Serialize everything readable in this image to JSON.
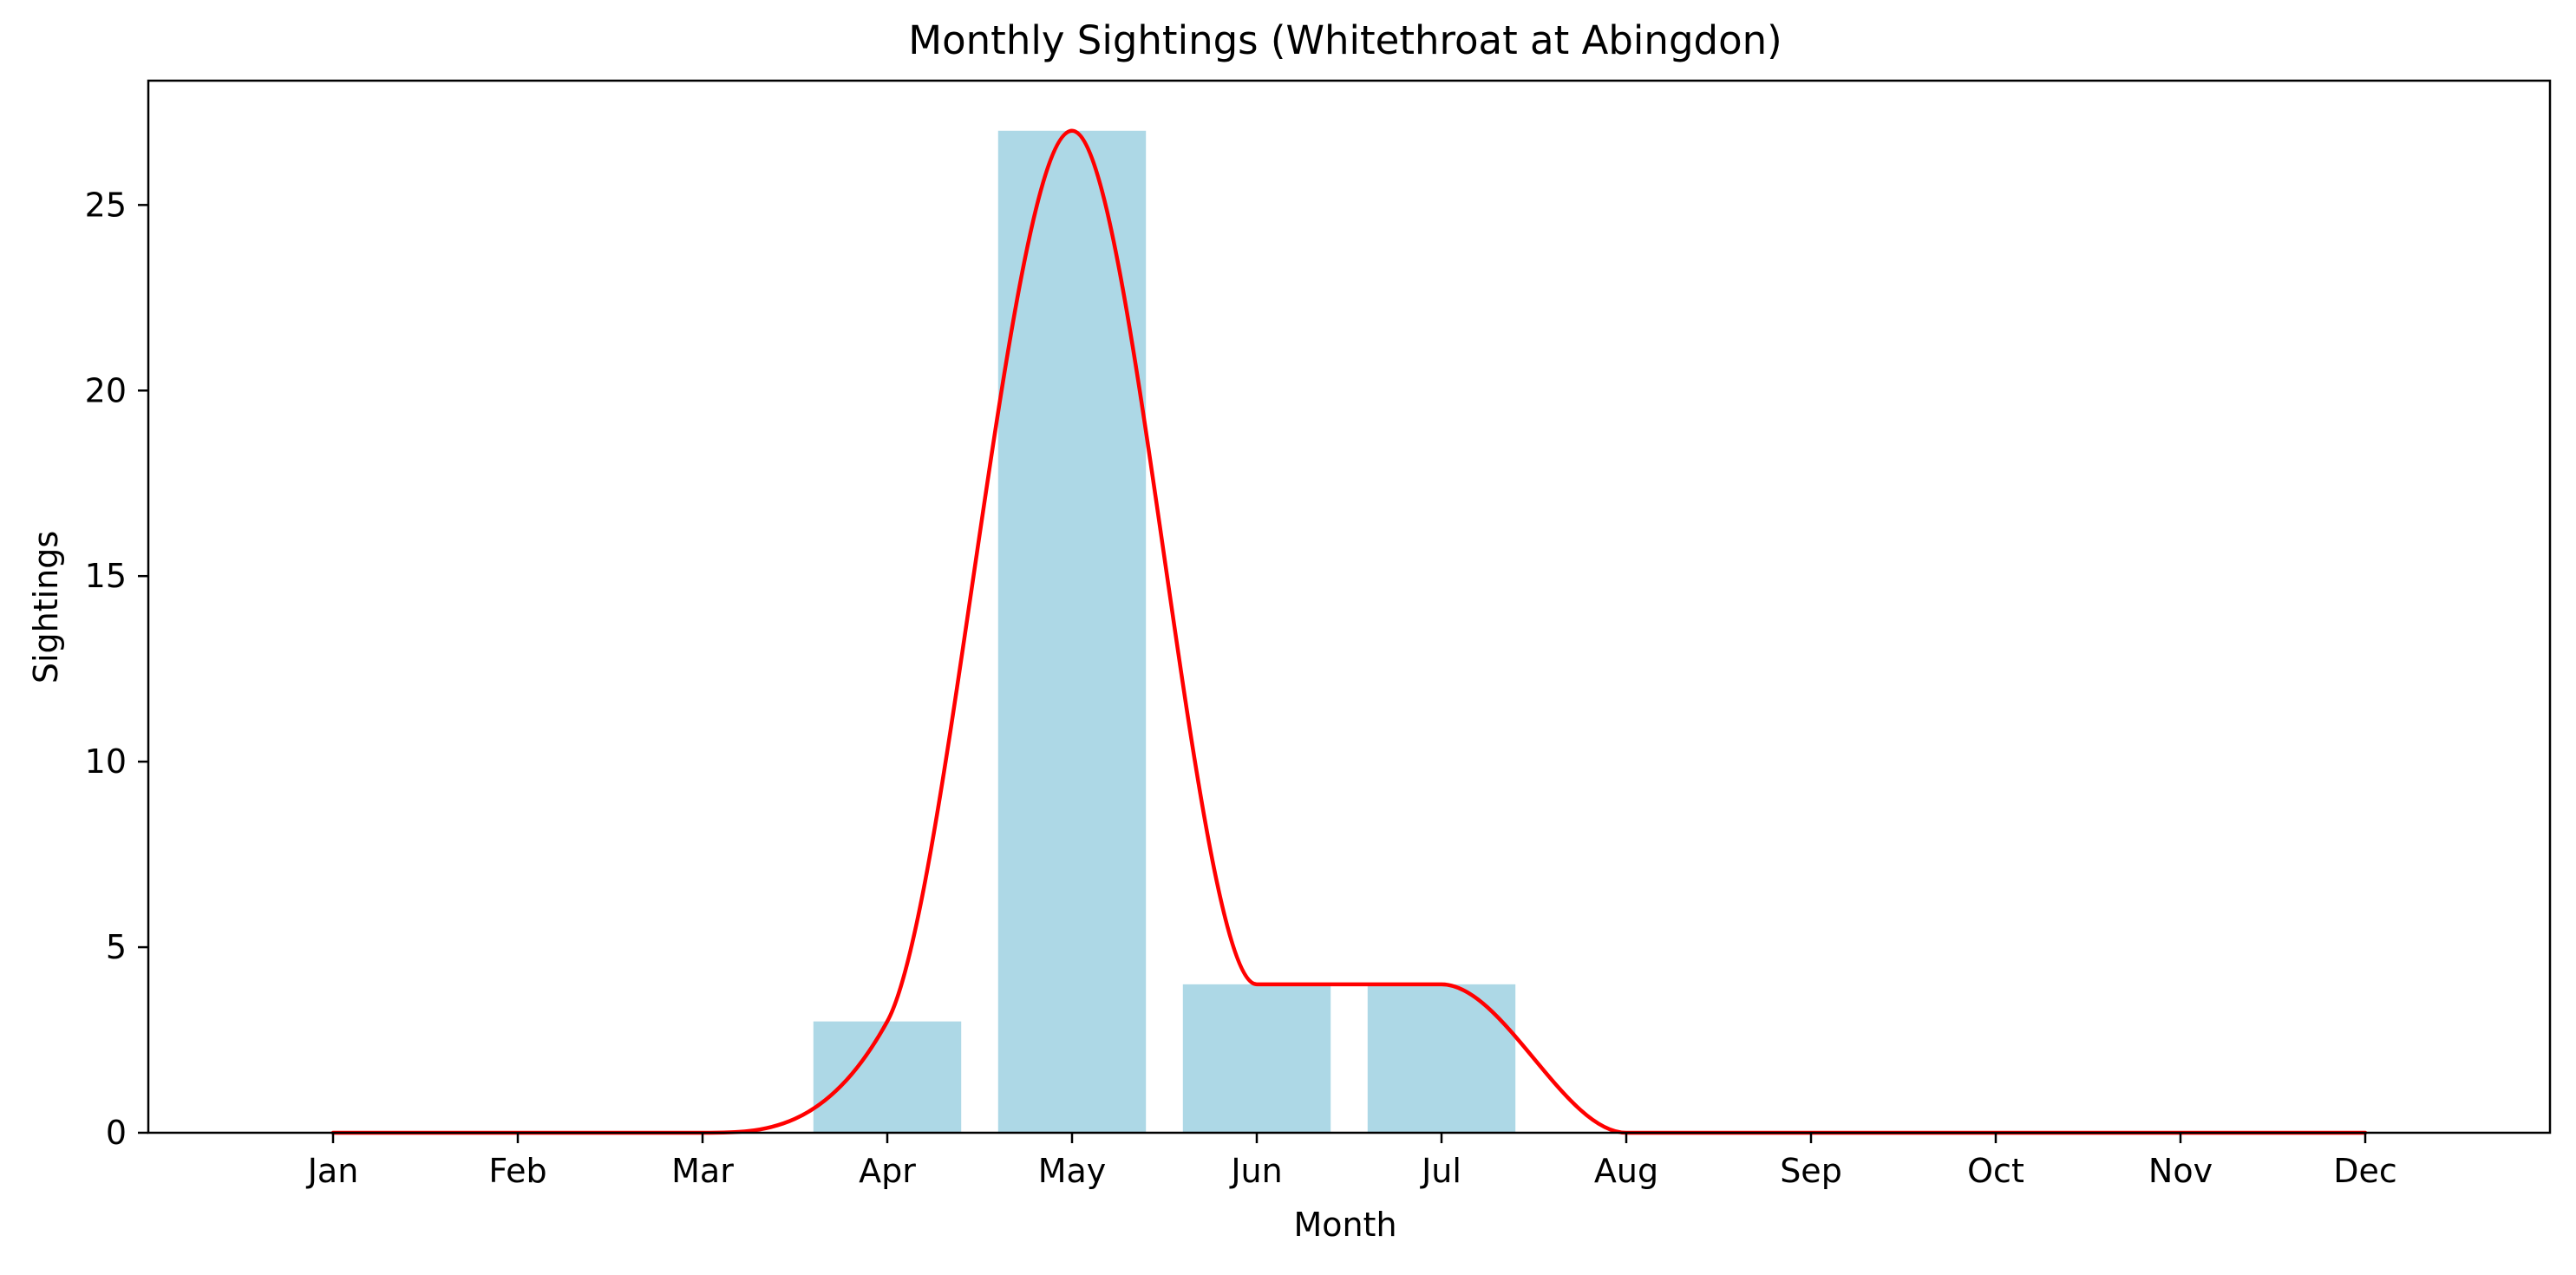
{
  "chart_data": {
    "type": "bar",
    "title": "Monthly Sightings (Whitethroat at Abingdon)",
    "xlabel": "Month",
    "ylabel": "Sightings",
    "categories": [
      "Jan",
      "Feb",
      "Mar",
      "Apr",
      "May",
      "Jun",
      "Jul",
      "Aug",
      "Sep",
      "Oct",
      "Nov",
      "Dec"
    ],
    "series": [
      {
        "type": "bar",
        "values": [
          0,
          0,
          0,
          3,
          27,
          4,
          4,
          0,
          0,
          0,
          0,
          0
        ],
        "color": "#add8e6"
      },
      {
        "type": "line",
        "smoothed": true,
        "values": [
          0,
          0,
          0,
          3,
          27,
          4,
          4,
          0,
          0,
          0,
          0,
          0
        ],
        "color": "#ff0000"
      }
    ],
    "ylim": [
      0,
      28.35
    ],
    "yticks": [
      0,
      5,
      10,
      15,
      20,
      25
    ],
    "grid": false,
    "legend": "none"
  }
}
